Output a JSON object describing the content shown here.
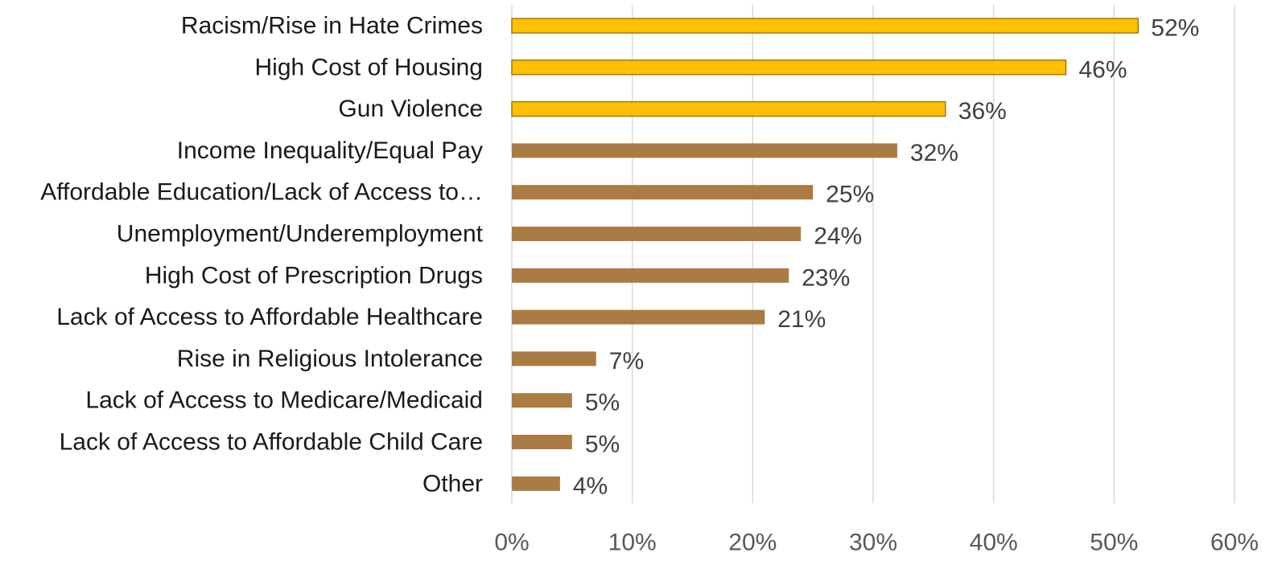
{
  "chart_data": {
    "type": "bar",
    "orientation": "horizontal",
    "title": "",
    "xlabel": "",
    "ylabel": "",
    "categories": [
      "Racism/Rise in Hate Crimes",
      "High Cost of Housing",
      "Gun Violence",
      "Income Inequality/Equal Pay",
      "Affordable Education/Lack of Access to…",
      "Unemployment/Underemployment",
      "High Cost of Prescription Drugs",
      "Lack of Access to Affordable Healthcare",
      "Rise in Religious Intolerance",
      "Lack of Access to Medicare/Medicaid",
      "Lack of Access to Affordable Child Care",
      "Other"
    ],
    "values": [
      52,
      46,
      36,
      32,
      25,
      24,
      23,
      21,
      7,
      5,
      5,
      4
    ],
    "data_labels": [
      "52%",
      "46%",
      "36%",
      "32%",
      "25%",
      "24%",
      "23%",
      "21%",
      "7%",
      "5%",
      "5%",
      "4%"
    ],
    "highlighted": [
      true,
      true,
      true,
      false,
      false,
      false,
      false,
      false,
      false,
      false,
      false,
      false
    ],
    "xlim": [
      0,
      60
    ],
    "x_ticks": [
      0,
      10,
      20,
      30,
      40,
      50,
      60
    ],
    "x_tick_labels": [
      "0%",
      "10%",
      "20%",
      "30%",
      "40%",
      "50%",
      "60%"
    ],
    "grid": "vertical",
    "legend": "none"
  },
  "colors": {
    "highlight_fill": "#FFC000",
    "highlight_stroke": "#A07A10",
    "default_fill": "#AA7B43",
    "gridline": "#D9D9D9"
  }
}
